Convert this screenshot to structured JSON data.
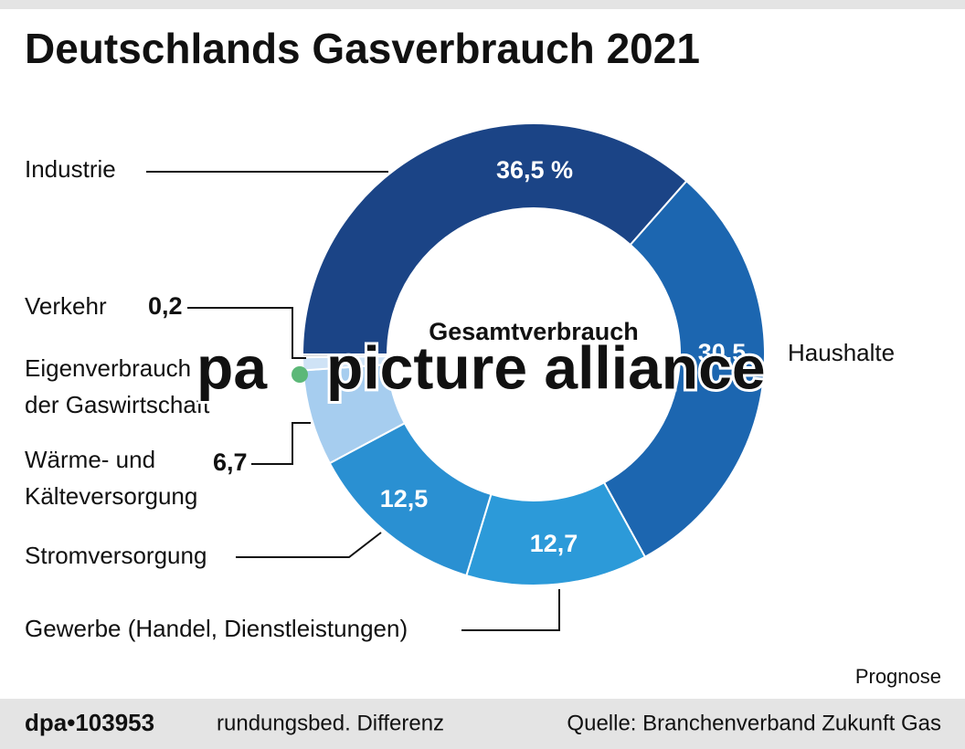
{
  "chart_data": {
    "type": "donut",
    "title": "Deutschlands Gasverbrauch 2021",
    "center_label": "Gesamtverbrauch",
    "categories": [
      "Industrie",
      "Haushalte",
      "Gewerbe (Handel, Dienstleistungen)",
      "Stromversorgung",
      "Wärme- und\nKälteversorgung",
      "Eigenverbrauch\nder Gaswirtschaft",
      "Verkehr"
    ],
    "values": [
      36.5,
      30.5,
      12.7,
      12.5,
      6.7,
      0.9,
      0.2
    ],
    "value_labels": [
      "36,5 %",
      "30,5",
      "12,7",
      "12,5",
      "6,7",
      null,
      "0,2"
    ],
    "colors": [
      "#1b4486",
      "#1c66b0",
      "#2c9ad9",
      "#2a90d2",
      "#a6cdef",
      "#cfe3f6",
      "#d6d6d6"
    ],
    "note": "Prognose",
    "footnote": "rundungsbed. Differenz",
    "source": "Quelle: Branchenverband Zukunft Gas",
    "credit": "dpa•103953",
    "watermark": [
      "pa",
      "picture alliance"
    ]
  }
}
